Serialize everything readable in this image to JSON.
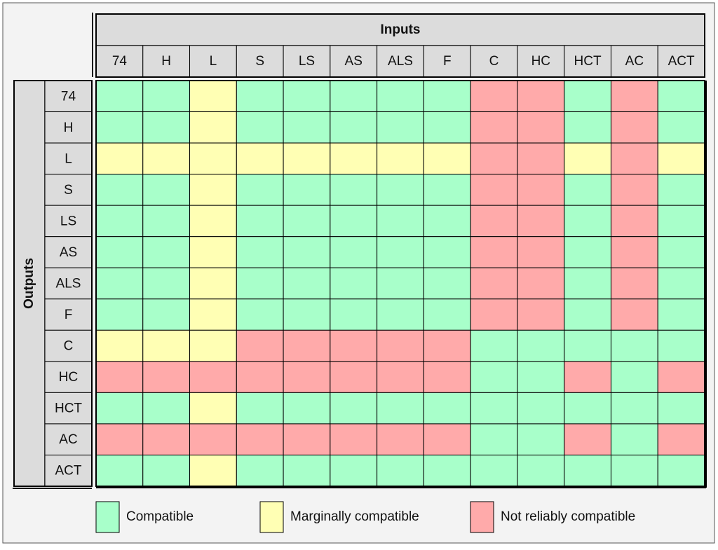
{
  "title_inputs": "Inputs",
  "title_outputs": "Outputs",
  "inputs": [
    "74",
    "H",
    "L",
    "S",
    "LS",
    "AS",
    "ALS",
    "F",
    "C",
    "HC",
    "HCT",
    "AC",
    "ACT"
  ],
  "outputs": [
    "74",
    "H",
    "L",
    "S",
    "LS",
    "AS",
    "ALS",
    "F",
    "C",
    "HC",
    "HCT",
    "AC",
    "ACT"
  ],
  "legend": [
    {
      "label": "Compatible",
      "color": "#a8ffca"
    },
    {
      "label": "Marginally compatible",
      "color": "#ffffb4"
    },
    {
      "label": "Not reliably compatible",
      "color": "#ffaaaa"
    }
  ],
  "matrix": [
    [
      0,
      0,
      1,
      0,
      0,
      0,
      0,
      0,
      2,
      2,
      0,
      2,
      0
    ],
    [
      0,
      0,
      1,
      0,
      0,
      0,
      0,
      0,
      2,
      2,
      0,
      2,
      0
    ],
    [
      1,
      1,
      1,
      1,
      1,
      1,
      1,
      1,
      2,
      2,
      1,
      2,
      1
    ],
    [
      0,
      0,
      1,
      0,
      0,
      0,
      0,
      0,
      2,
      2,
      0,
      2,
      0
    ],
    [
      0,
      0,
      1,
      0,
      0,
      0,
      0,
      0,
      2,
      2,
      0,
      2,
      0
    ],
    [
      0,
      0,
      1,
      0,
      0,
      0,
      0,
      0,
      2,
      2,
      0,
      2,
      0
    ],
    [
      0,
      0,
      1,
      0,
      0,
      0,
      0,
      0,
      2,
      2,
      0,
      2,
      0
    ],
    [
      0,
      0,
      1,
      0,
      0,
      0,
      0,
      0,
      2,
      2,
      0,
      2,
      0
    ],
    [
      1,
      1,
      1,
      2,
      2,
      2,
      2,
      2,
      0,
      0,
      0,
      0,
      0
    ],
    [
      2,
      2,
      2,
      2,
      2,
      2,
      2,
      2,
      0,
      0,
      2,
      0,
      2
    ],
    [
      0,
      0,
      1,
      0,
      0,
      0,
      0,
      0,
      0,
      0,
      0,
      0,
      0
    ],
    [
      2,
      2,
      2,
      2,
      2,
      2,
      2,
      2,
      0,
      0,
      2,
      0,
      2
    ],
    [
      0,
      0,
      1,
      0,
      0,
      0,
      0,
      0,
      0,
      0,
      0,
      0,
      0
    ]
  ]
}
